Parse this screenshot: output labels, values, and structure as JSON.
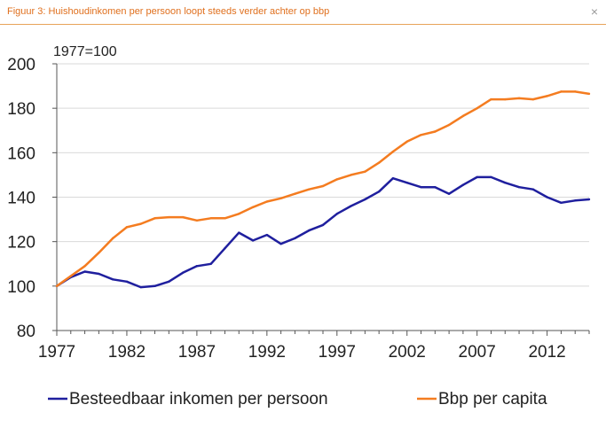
{
  "window": {
    "title": "Figuur 3: Huishoudinkomen per persoon loopt steeds verder achter op bbp",
    "close_glyph": "×"
  },
  "chart_data": {
    "type": "line",
    "title": "",
    "index_note": "1977=100",
    "xlabel": "",
    "ylabel": "",
    "ylim": [
      80,
      200
    ],
    "xlim": [
      1977,
      2015
    ],
    "yticks": [
      80,
      100,
      120,
      140,
      160,
      180,
      200
    ],
    "xticks": [
      1977,
      1982,
      1987,
      1992,
      1997,
      2002,
      2007,
      2012
    ],
    "grid": "horizontal",
    "legend_position": "bottom",
    "x": [
      1977,
      1978,
      1979,
      1980,
      1981,
      1982,
      1983,
      1984,
      1985,
      1986,
      1987,
      1988,
      1989,
      1990,
      1991,
      1992,
      1993,
      1994,
      1995,
      1996,
      1997,
      1998,
      1999,
      2000,
      2001,
      2002,
      2003,
      2004,
      2005,
      2006,
      2007,
      2008,
      2009,
      2010,
      2011,
      2012,
      2013,
      2014,
      2015
    ],
    "series": [
      {
        "name": "Besteedbaar inkomen per persoon",
        "color": "#1f1f9e",
        "values": [
          100,
          104,
          106.5,
          105.5,
          103,
          102,
          99.5,
          100,
          102,
          106,
          109,
          110,
          117,
          124,
          120.5,
          123,
          119,
          121.5,
          125,
          127.5,
          132.5,
          136,
          139,
          142.5,
          148.5,
          146.5,
          144.5,
          144.5,
          141.5,
          145.5,
          149,
          149,
          146.5,
          144.5,
          143.5,
          140,
          137.5,
          138.5,
          139
        ]
      },
      {
        "name": "Bbp per capita",
        "color": "#f47c20",
        "values": [
          100,
          104.5,
          109,
          115,
          121.5,
          126.5,
          128,
          130.5,
          131,
          131,
          129.5,
          130.5,
          130.5,
          132.5,
          135.5,
          138,
          139.5,
          141.5,
          143.5,
          145,
          148,
          150,
          151.5,
          155.5,
          160.5,
          165,
          168,
          169.5,
          172.5,
          176.5,
          180,
          184,
          184,
          184.5,
          184,
          185.5,
          187.5,
          187.5,
          186.5
        ]
      }
    ]
  }
}
